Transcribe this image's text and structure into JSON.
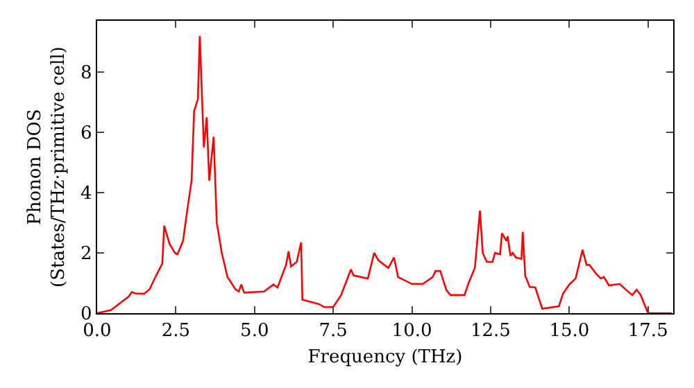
{
  "chart_data": {
    "type": "line",
    "xlabel": "Frequency (THz)",
    "ylabel": "Phonon DOS\n(States/THz·primitive cell)",
    "xlim": [
      0,
      18.3
    ],
    "ylim": [
      0,
      9.7
    ],
    "xticks": [
      {
        "value": 0,
        "label": "0.0"
      },
      {
        "value": 2.5,
        "label": "2.5"
      },
      {
        "value": 5,
        "label": "5.0"
      },
      {
        "value": 7.5,
        "label": "7.5"
      },
      {
        "value": 10,
        "label": "10.0"
      },
      {
        "value": 12.5,
        "label": "12.5"
      },
      {
        "value": 15,
        "label": "15.0"
      },
      {
        "value": 17.5,
        "label": "17.5"
      }
    ],
    "yticks": [
      0,
      2,
      4,
      6,
      8
    ],
    "grid": false,
    "marker": "none",
    "line_style": "solid",
    "series": [
      {
        "color": "#ff0000",
        "x": [
          0,
          0.44,
          1.0,
          1.1,
          1.23,
          1.5,
          1.67,
          1.85,
          2.07,
          2.13,
          2.3,
          2.47,
          2.55,
          2.73,
          2.86,
          3.0,
          3.08,
          3.2,
          3.26,
          3.39,
          3.48,
          3.56,
          3.7,
          3.8,
          3.96,
          4.14,
          4.4,
          4.5,
          4.58,
          4.67,
          5.3,
          5.6,
          5.73,
          6.0,
          6.08,
          6.16,
          6.34,
          6.48,
          6.52,
          7.05,
          7.22,
          7.5,
          7.75,
          8.06,
          8.15,
          8.6,
          8.8,
          8.94,
          9.25,
          9.43,
          9.56,
          10.0,
          10.35,
          10.66,
          10.75,
          10.9,
          11.1,
          11.23,
          11.67,
          11.8,
          12.0,
          12.16,
          12.25,
          12.38,
          12.56,
          12.64,
          12.8,
          12.86,
          13.0,
          13.04,
          13.13,
          13.2,
          13.3,
          13.48,
          13.52,
          13.6,
          13.74,
          13.92,
          14.14,
          14.67,
          14.8,
          15.0,
          15.2,
          15.42,
          15.55,
          15.64,
          15.86,
          16.0,
          16.1,
          16.26,
          16.6,
          16.83,
          17.0,
          17.14,
          17.27,
          17.5,
          18.25
        ],
        "values": [
          0,
          0.1,
          0.55,
          0.7,
          0.65,
          0.65,
          0.8,
          1.2,
          1.65,
          2.9,
          2.3,
          2.0,
          1.95,
          2.4,
          3.4,
          4.4,
          6.7,
          7.1,
          9.2,
          5.5,
          6.5,
          4.4,
          5.85,
          3.0,
          2.0,
          1.2,
          0.78,
          0.72,
          0.95,
          0.68,
          0.72,
          0.95,
          0.85,
          1.6,
          2.05,
          1.55,
          1.7,
          2.35,
          0.45,
          0.3,
          0.2,
          0.2,
          0.6,
          1.45,
          1.25,
          1.15,
          2.0,
          1.75,
          1.5,
          1.85,
          1.2,
          0.97,
          0.97,
          1.2,
          1.4,
          1.4,
          0.75,
          0.6,
          0.6,
          1.0,
          1.5,
          3.4,
          2.0,
          1.7,
          1.7,
          2.0,
          1.95,
          2.65,
          2.4,
          2.55,
          1.9,
          2.0,
          1.85,
          1.8,
          2.7,
          1.25,
          0.87,
          0.85,
          0.15,
          0.23,
          0.65,
          0.95,
          1.15,
          2.1,
          1.6,
          1.6,
          1.3,
          1.15,
          1.2,
          0.92,
          0.97,
          0.75,
          0.6,
          0.78,
          0.6,
          0,
          0
        ]
      }
    ]
  }
}
